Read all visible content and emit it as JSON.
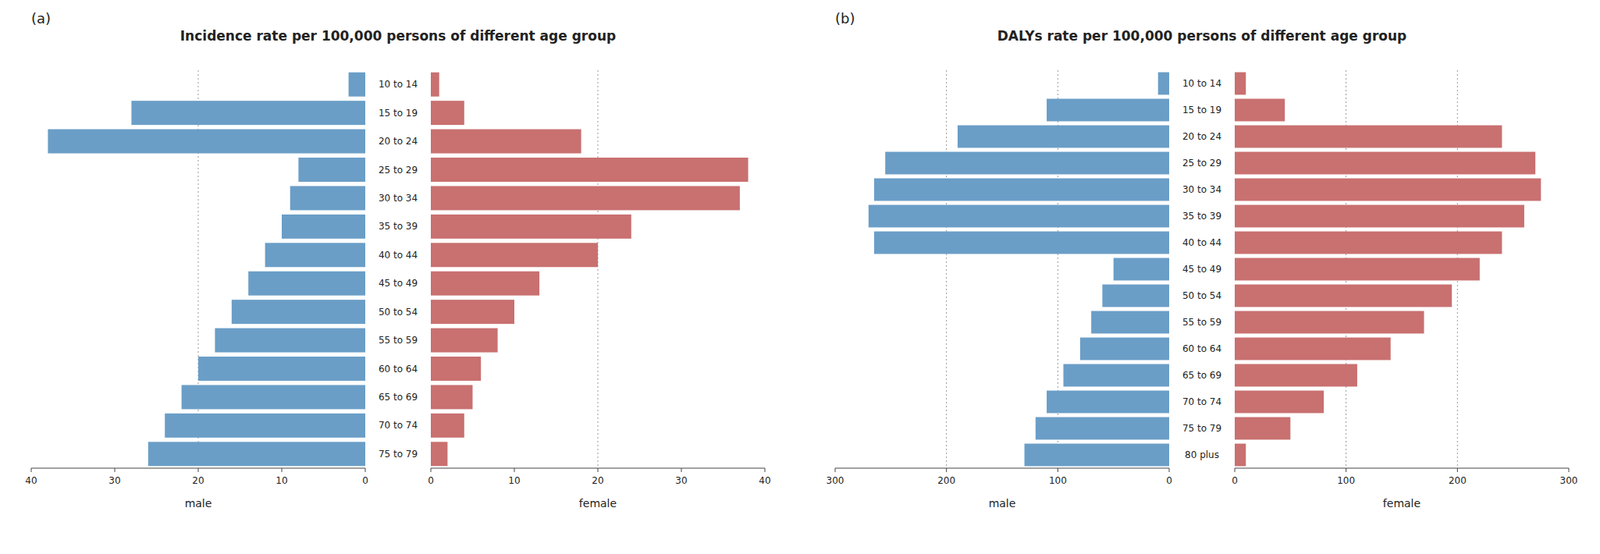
{
  "chart_data": [
    {
      "type": "bar",
      "orientation": "horizontal",
      "title": "Incidence rate per 100,000 persons of different age group",
      "annotations": [
        "(a)"
      ],
      "categories": [
        "75 to 79",
        "70 to 74",
        "65 to 69",
        "60 to 64",
        "55 to 59",
        "50 to 54",
        "45 to 49",
        "40 to 44",
        "35 to 39",
        "30 to 34",
        "25 to 29",
        "20 to 24",
        "15 to 19",
        "10 to 14"
      ],
      "series": [
        {
          "name": "male",
          "color": "#6a9ec7",
          "values": [
            26,
            24,
            22,
            20,
            18,
            16,
            14,
            12,
            10,
            9,
            8,
            38,
            28,
            2
          ]
        },
        {
          "name": "female",
          "color": "#c97070",
          "values": [
            2,
            4,
            5,
            6,
            8,
            10,
            13,
            20,
            24,
            37,
            38,
            18,
            4,
            1
          ]
        }
      ],
      "xlim": [
        0,
        40
      ],
      "xticks": [
        0,
        10,
        20,
        30,
        40
      ],
      "vlines": [
        20
      ]
    },
    {
      "type": "bar",
      "orientation": "horizontal",
      "title": "DALYs rate per 100,000 persons of different age group",
      "annotations": [
        "(b)"
      ],
      "categories": [
        "80 plus",
        "75 to 79",
        "70 to 74",
        "65 to 69",
        "60 to 64",
        "55 to 59",
        "50 to 54",
        "45 to 49",
        "40 to 44",
        "35 to 39",
        "30 to 34",
        "25 to 29",
        "20 to 24",
        "15 to 19",
        "10 to 14"
      ],
      "series": [
        {
          "name": "male",
          "color": "#6a9ec7",
          "values": [
            130,
            120,
            110,
            95,
            80,
            70,
            60,
            50,
            265,
            270,
            265,
            255,
            190,
            110,
            10
          ]
        },
        {
          "name": "female",
          "color": "#c97070",
          "values": [
            10,
            50,
            80,
            110,
            140,
            170,
            195,
            220,
            240,
            260,
            275,
            270,
            240,
            45,
            10
          ]
        }
      ],
      "xlim": [
        0,
        300
      ],
      "xticks": [
        0,
        100,
        200,
        300
      ],
      "vlines": [
        100,
        200
      ]
    }
  ]
}
